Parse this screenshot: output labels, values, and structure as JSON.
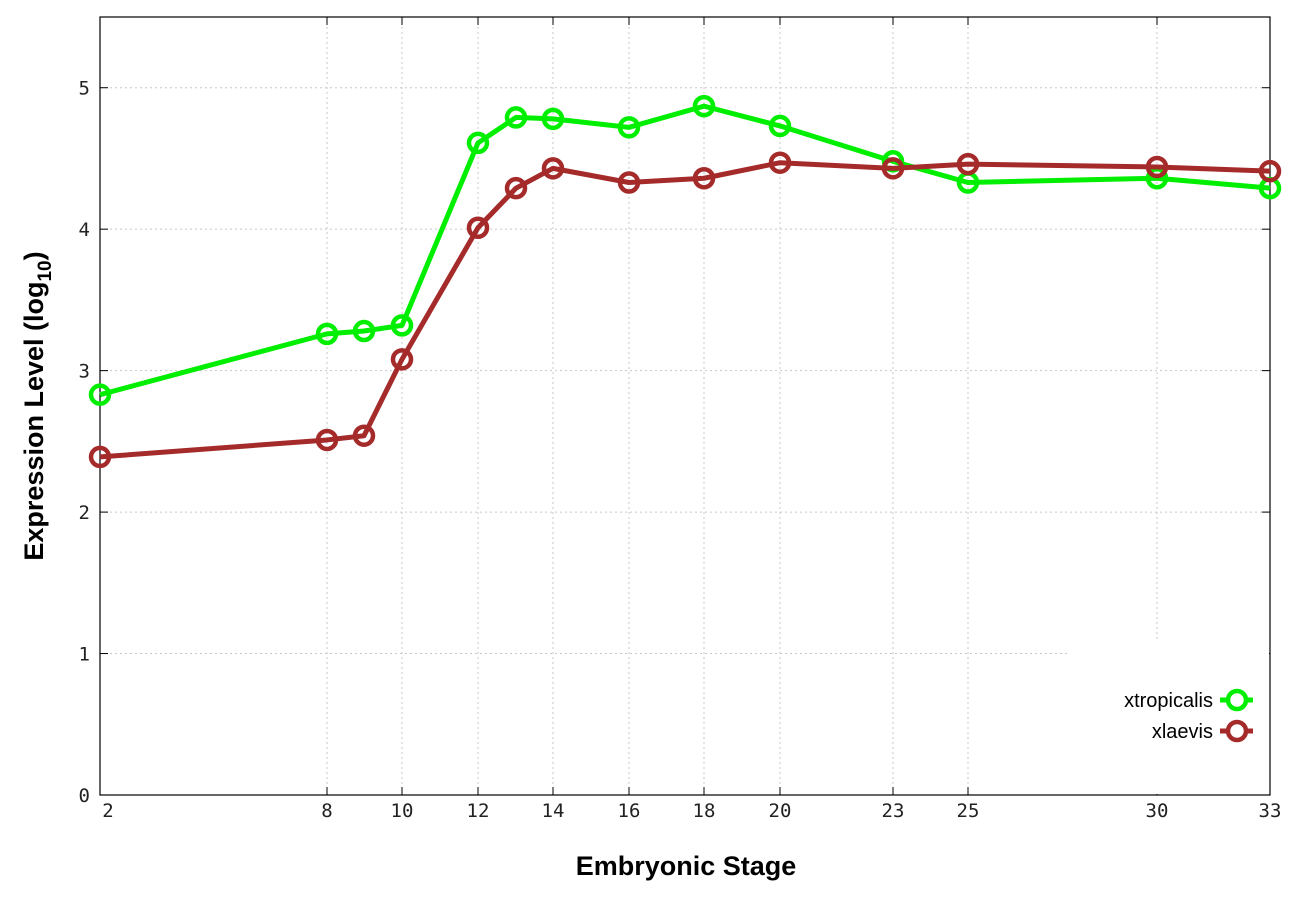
{
  "chart_data": {
    "type": "line",
    "xlabel": "Embryonic Stage",
    "ylabel": "Expression Level (log",
    "ylabel_subscript": "10",
    "ylabel_close": ")",
    "x_ticks": [
      "2",
      "8",
      "10",
      "12",
      "14",
      "16",
      "18",
      "20",
      "23",
      "25",
      "30",
      "33"
    ],
    "y_ticks": [
      "0",
      "1",
      "2",
      "3",
      "4",
      "5"
    ],
    "ylim": [
      0,
      5.5
    ],
    "grid": true,
    "legend_position": "bottom-right",
    "series": [
      {
        "name": "xtropicalis",
        "color": "#00ee00",
        "points": [
          {
            "x": "2",
            "y": 2.83
          },
          {
            "x": "8",
            "y": 3.26
          },
          {
            "x": "8.5",
            "y": 3.28
          },
          {
            "x": "10",
            "y": 3.32
          },
          {
            "x": "12",
            "y": 4.61
          },
          {
            "x": "13",
            "y": 4.79
          },
          {
            "x": "14",
            "y": 4.78
          },
          {
            "x": "16",
            "y": 4.72
          },
          {
            "x": "18",
            "y": 4.87
          },
          {
            "x": "20",
            "y": 4.73
          },
          {
            "x": "23",
            "y": 4.48
          },
          {
            "x": "25",
            "y": 4.33
          },
          {
            "x": "30",
            "y": 4.36
          },
          {
            "x": "33",
            "y": 4.29
          }
        ]
      },
      {
        "name": "xlaevis",
        "color": "#a52a2a",
        "points": [
          {
            "x": "2",
            "y": 2.39
          },
          {
            "x": "8",
            "y": 2.51
          },
          {
            "x": "8.5",
            "y": 2.54
          },
          {
            "x": "10",
            "y": 3.08
          },
          {
            "x": "12",
            "y": 4.01
          },
          {
            "x": "13",
            "y": 4.29
          },
          {
            "x": "14",
            "y": 4.43
          },
          {
            "x": "16",
            "y": 4.33
          },
          {
            "x": "18",
            "y": 4.36
          },
          {
            "x": "20",
            "y": 4.47
          },
          {
            "x": "23",
            "y": 4.43
          },
          {
            "x": "25",
            "y": 4.46
          },
          {
            "x": "30",
            "y": 4.44
          },
          {
            "x": "33",
            "y": 4.41
          }
        ]
      }
    ]
  }
}
